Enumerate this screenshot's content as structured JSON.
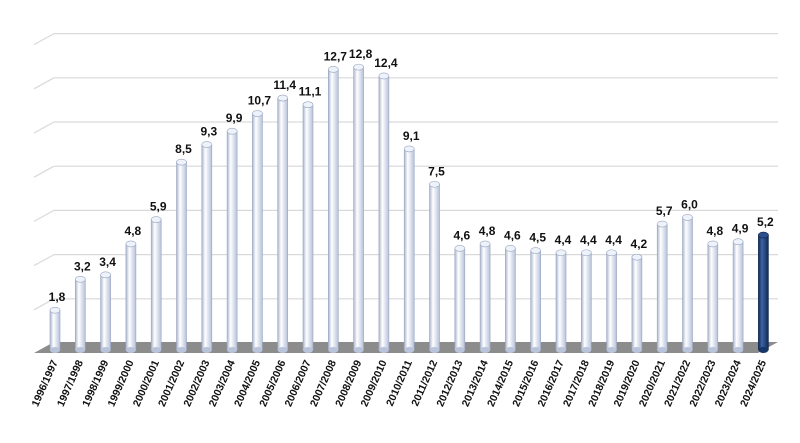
{
  "chart_data": {
    "type": "bar",
    "title": "",
    "xlabel": "",
    "ylabel": "",
    "ylim": [
      0,
      14
    ],
    "grid": true,
    "legend": "none",
    "categories": [
      "1996/1997",
      "1997/1998",
      "1998/1999",
      "1999/2000",
      "2000/2001",
      "2001/2002",
      "2002/2003",
      "2003/2004",
      "2004/2005",
      "2005/2006",
      "2006/2007",
      "2007/2008",
      "2008/2009",
      "2009/2010",
      "2010/2011",
      "2011/2012",
      "2012/2013",
      "2013/2014",
      "2014/2015",
      "2015/2016",
      "2016/2017",
      "2017/2018",
      "2018/2019",
      "2019/2020",
      "2020/2021",
      "2021/2022",
      "2022/2023",
      "2023/2024",
      "2024/2025"
    ],
    "values": [
      1.8,
      3.2,
      3.4,
      4.8,
      5.9,
      8.5,
      9.3,
      9.9,
      10.7,
      11.4,
      11.1,
      12.7,
      12.8,
      12.4,
      9.1,
      7.5,
      4.6,
      4.8,
      4.6,
      4.5,
      4.4,
      4.4,
      4.4,
      4.2,
      5.7,
      6.0,
      4.8,
      4.9,
      5.2
    ],
    "value_labels": [
      "1,8",
      "3,2",
      "3,4",
      "4,8",
      "5,9",
      "8,5",
      "9,3",
      "9,9",
      "10,7",
      "11,4",
      "11,1",
      "12,7",
      "12,8",
      "12,4",
      "9,1",
      "7,5",
      "4,6",
      "4,8",
      "4,6",
      "4,5",
      "4,4",
      "4,4",
      "4,4",
      "4,2",
      "5,7",
      "6,0",
      "4,8",
      "4,9",
      "5,2"
    ],
    "bar_color": "#d3dcee",
    "highlight_color": "#1c3f7a",
    "highlight_index": 28,
    "floor_color": "#8c8c8c",
    "grid_color": "#d9d9d9"
  }
}
